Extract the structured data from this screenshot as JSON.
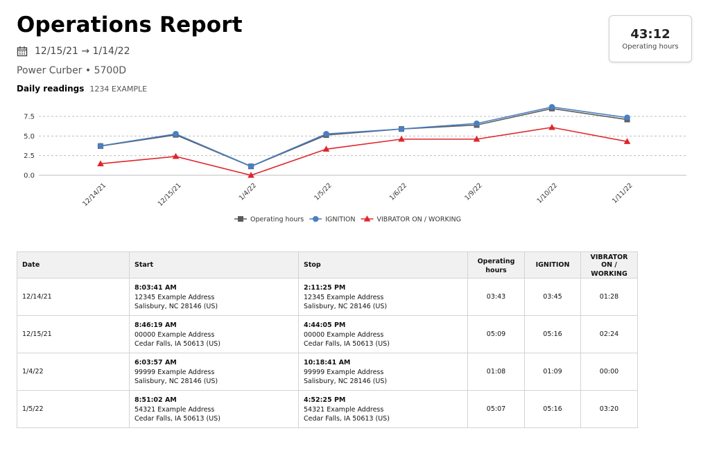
{
  "header": {
    "title": "Operations Report",
    "date_range": "12/15/21 → 1/14/22",
    "machine": "Power Curber • 5700D",
    "readings_label": "Daily readings",
    "readings_id": "1234 EXAMPLE"
  },
  "summary": {
    "value": "43:12",
    "caption": "Operating hours"
  },
  "chart_data": {
    "type": "line",
    "categories": [
      "12/14/21",
      "12/15/21",
      "1/4/22",
      "1/5/22",
      "1/6/22",
      "1/9/22",
      "1/10/22",
      "1/11/22"
    ],
    "series": [
      {
        "name": "Operating hours",
        "values": [
          3.72,
          5.15,
          1.13,
          5.12,
          5.9,
          6.4,
          8.5,
          7.1
        ],
        "color": "#5b5b5b",
        "marker": "square"
      },
      {
        "name": "IGNITION",
        "values": [
          3.75,
          5.27,
          1.15,
          5.27,
          5.9,
          6.6,
          8.7,
          7.35
        ],
        "color": "#4a7fc1",
        "marker": "circle"
      },
      {
        "name": "VIBRATOR ON / WORKING",
        "values": [
          1.47,
          2.4,
          0.0,
          3.33,
          4.6,
          4.6,
          6.1,
          4.3
        ],
        "color": "#e0252b",
        "marker": "triangle"
      }
    ],
    "yticks": [
      "0.0",
      "2.5",
      "5.0",
      "7.5"
    ],
    "ylim": [
      0,
      10
    ],
    "grid": true,
    "legend": "bottom-center"
  },
  "table": {
    "headers": {
      "date": "Date",
      "start": "Start",
      "stop": "Stop",
      "op_hours": [
        "Operating",
        "hours"
      ],
      "ignition": "IGNITION",
      "vibrator": [
        "VIBRATOR ON /",
        "WORKING"
      ]
    },
    "rows": [
      {
        "date": "12/14/21",
        "start_time": "8:03:41 AM",
        "start_addr": "12345 Example Address",
        "start_city": "Salisbury, NC 28146 (US)",
        "stop_time": "2:11:25 PM",
        "stop_addr": "12345 Example Address",
        "stop_city": "Salisbury, NC 28146 (US)",
        "op_hours": "03:43",
        "ignition": "03:45",
        "vibrator": "01:28"
      },
      {
        "date": "12/15/21",
        "start_time": "8:46:19 AM",
        "start_addr": "00000 Example Address",
        "start_city": "Cedar Falls, IA 50613 (US)",
        "stop_time": "4:44:05 PM",
        "stop_addr": "00000 Example Address",
        "stop_city": "Cedar Falls, IA 50613 (US)",
        "op_hours": "05:09",
        "ignition": "05:16",
        "vibrator": "02:24"
      },
      {
        "date": "1/4/22",
        "start_time": "6:03:57 AM",
        "start_addr": "99999 Example Address",
        "start_city": "Salisbury, NC 28146 (US)",
        "stop_time": "10:18:41 AM",
        "stop_addr": "99999 Example Address",
        "stop_city": "Salisbury, NC 28146 (US)",
        "op_hours": "01:08",
        "ignition": "01:09",
        "vibrator": "00:00"
      },
      {
        "date": "1/5/22",
        "start_time": "8:51:02 AM",
        "start_addr": "54321 Example Address",
        "start_city": "Cedar Falls, IA 50613 (US)",
        "stop_time": "4:52:25 PM",
        "stop_addr": "54321 Example Address",
        "stop_city": "Cedar Falls, IA 50613 (US)",
        "op_hours": "05:07",
        "ignition": "05:16",
        "vibrator": "03:20"
      }
    ]
  }
}
